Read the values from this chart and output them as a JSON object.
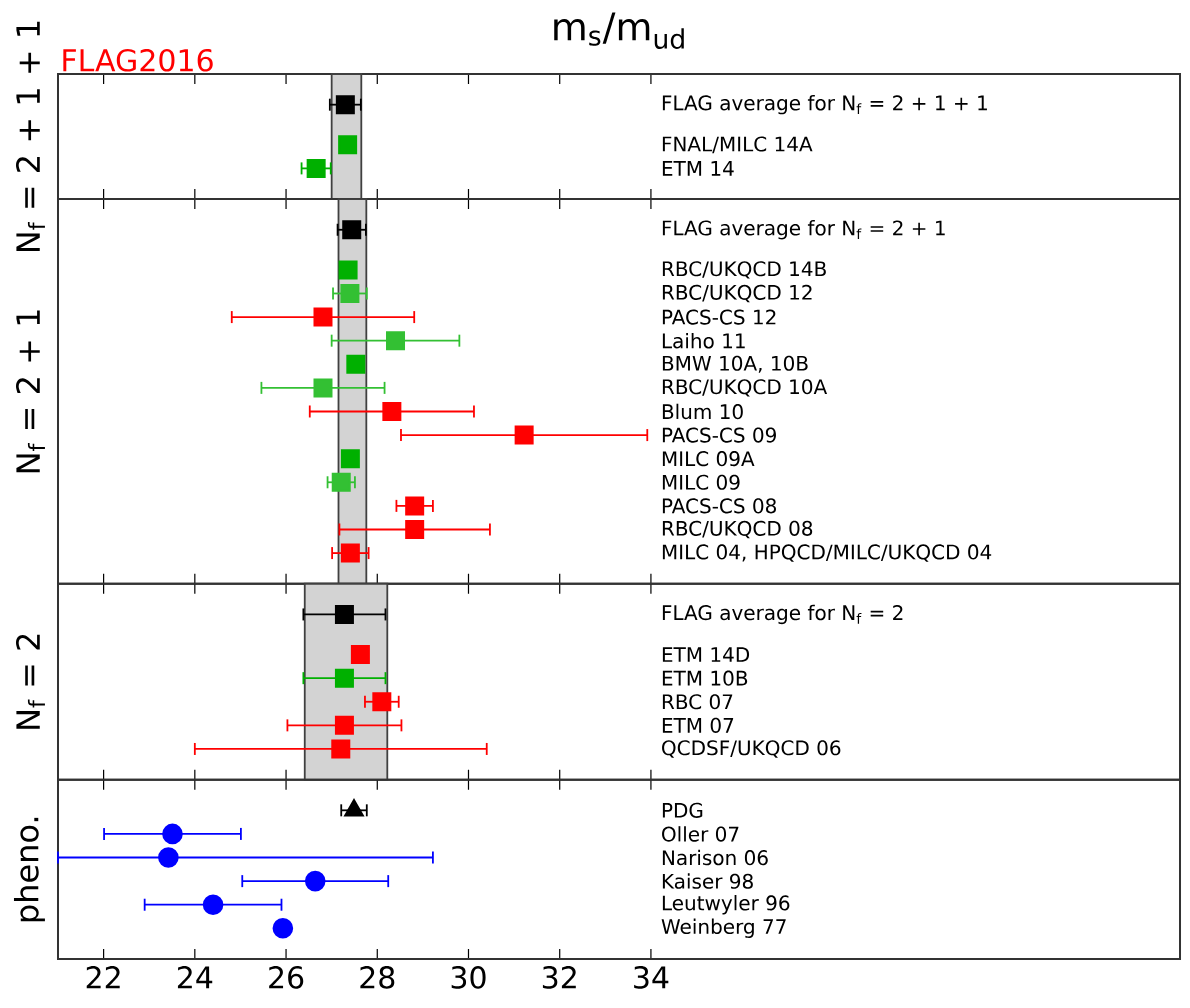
{
  "chart_data": [
    {
      "type": "scatter",
      "orientation": "horizontal",
      "title": "m$_{s}$/m$_{ud}$",
      "annotations": [
        "FLAG2016"
      ],
      "ylabel": "N$_{f}$ = 2 + 1 + 1",
      "tick_labels": false,
      "categories": [
        "FLAG average for N$_{f}$ = 2 + 1 + 1",
        "FNAL/MILC 14A",
        "ETM 14"
      ],
      "xlim": [
        21,
        45.6
      ],
      "xticks": [
        22,
        24,
        26,
        28,
        30,
        32,
        34
      ],
      "bands": [
        {
          "axis": "x",
          "from": 27.0,
          "to": 27.65,
          "color": "#d3d3d3"
        }
      ],
      "series": [
        {
          "color": "#000000",
          "marker": "square",
          "values": [
            27.3,
            null,
            null
          ],
          "errors": [
            0.34,
            null,
            null
          ]
        },
        {
          "color": "#00b000",
          "marker": "square",
          "values": [
            null,
            27.35,
            26.66
          ],
          "errors": [
            null,
            null,
            0.32
          ]
        }
      ]
    },
    {
      "type": "scatter",
      "orientation": "horizontal",
      "ylabel": "N$_{f}$ = 2 + 1",
      "tick_labels": false,
      "categories": [
        "FLAG average for N$_{f}$ = 2 + 1",
        "RBC/UKQCD 14B",
        "RBC/UKQCD 12",
        "PACS-CS 12",
        "Laiho 11",
        "BMW 10A, 10B",
        "RBC/UKQCD 10A",
        "Blum 10",
        "PACS-CS 09",
        "MILC 09A",
        "MILC 09",
        "PACS-CS 08",
        "RBC/UKQCD 08",
        "MILC 04, HPQCD/MILC/UKQCD 04"
      ],
      "xlim": [
        21,
        45.6
      ],
      "xticks": [
        22,
        24,
        26,
        28,
        30,
        32,
        34
      ],
      "bands": [
        {
          "axis": "x",
          "from": 27.15,
          "to": 27.76,
          "color": "#d3d3d3"
        }
      ],
      "series": [
        {
          "color": "#000000",
          "marker": "square",
          "values": [
            27.44,
            null,
            null,
            null,
            null,
            null,
            null,
            null,
            null,
            null,
            null,
            null,
            null,
            null
          ],
          "errors": [
            0.31,
            null,
            null,
            null,
            null,
            null,
            null,
            null,
            null,
            null,
            null,
            null,
            null,
            null
          ]
        },
        {
          "color": "#00b000",
          "marker": "square",
          "values": [
            null,
            27.36,
            null,
            null,
            null,
            27.53,
            null,
            null,
            null,
            27.41,
            null,
            null,
            null,
            null
          ],
          "errors": [
            null,
            null,
            null,
            null,
            null,
            null,
            null,
            null,
            null,
            null,
            null,
            null,
            null,
            null
          ]
        },
        {
          "color": "#33c033",
          "marker": "square",
          "values": [
            null,
            null,
            27.4,
            null,
            28.4,
            null,
            26.81,
            null,
            null,
            null,
            27.21,
            null,
            null,
            null
          ],
          "errors": [
            null,
            null,
            0.37,
            null,
            1.4,
            null,
            1.35,
            null,
            null,
            null,
            0.3,
            null,
            null,
            null
          ]
        },
        {
          "color": "#ff0000",
          "marker": "square",
          "values": [
            null,
            null,
            null,
            26.81,
            null,
            null,
            null,
            28.32,
            31.22,
            null,
            null,
            28.82,
            28.82,
            27.41
          ],
          "errors": [
            null,
            null,
            null,
            2.0,
            null,
            null,
            null,
            1.8,
            2.7,
            null,
            null,
            0.4,
            1.65,
            0.4
          ]
        }
      ]
    },
    {
      "type": "scatter",
      "orientation": "horizontal",
      "ylabel": "N$_{f}$ = 2",
      "tick_labels": false,
      "categories": [
        "FLAG average for N$_{f}$ = 2",
        "ETM 14D",
        "ETM 10B",
        "RBC 07",
        "ETM 07",
        "QCDSF/UKQCD 06"
      ],
      "xlim": [
        21,
        45.6
      ],
      "xticks": [
        22,
        24,
        26,
        28,
        30,
        32,
        34
      ],
      "bands": [
        {
          "axis": "x",
          "from": 26.41,
          "to": 28.22,
          "color": "#d3d3d3"
        }
      ],
      "series": [
        {
          "color": "#000000",
          "marker": "square",
          "values": [
            27.28,
            null,
            null,
            null,
            null,
            null
          ],
          "errors": [
            0.9,
            null,
            null,
            null,
            null,
            null
          ]
        },
        {
          "color": "#00b000",
          "marker": "square",
          "values": [
            null,
            null,
            27.28,
            null,
            null,
            null
          ],
          "errors": [
            null,
            null,
            0.9,
            null,
            null,
            null
          ]
        },
        {
          "color": "#ff0000",
          "marker": "square",
          "values": [
            null,
            27.63,
            null,
            28.1,
            27.28,
            27.2
          ],
          "errors": [
            null,
            null,
            null,
            0.37,
            1.25,
            3.2
          ]
        }
      ]
    },
    {
      "type": "scatter",
      "orientation": "horizontal",
      "ylabel": "pheno.",
      "tick_labels": "x",
      "categories": [
        "PDG",
        "Oller 07",
        "Narison 06",
        "Kaiser 98",
        "Leutwyler 96",
        "Weinberg 77"
      ],
      "xlim": [
        21,
        45.6
      ],
      "xticks": [
        22,
        24,
        26,
        28,
        30,
        32,
        34
      ],
      "series": [
        {
          "color": "#000000",
          "marker": "triangle",
          "values": [
            27.49,
            null,
            null,
            null,
            null,
            null
          ],
          "errors": [
            0.28,
            null,
            null,
            null,
            null,
            null
          ]
        },
        {
          "color": "#0000ff",
          "marker": "circle",
          "values": [
            null,
            23.51,
            23.42,
            26.64,
            24.4,
            25.93
          ],
          "errors": [
            null,
            1.5,
            [
              21.0,
              29.22
            ],
            1.6,
            1.5,
            null
          ]
        }
      ]
    }
  ]
}
